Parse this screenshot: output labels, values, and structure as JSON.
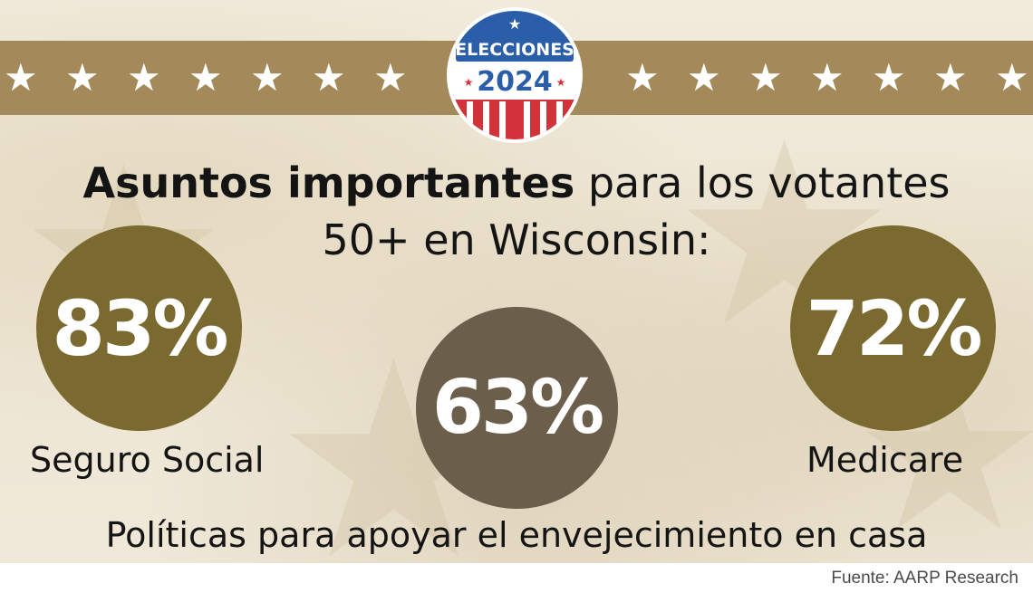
{
  "badge": {
    "line1": "ELECCIONES",
    "line2": "2024"
  },
  "headline": {
    "bold": "Asuntos importantes",
    "rest": " para los votantes",
    "line2": "50+ en Wisconsin:"
  },
  "stats": [
    {
      "value": "83%",
      "label": "Seguro Social"
    },
    {
      "value": "63%",
      "label": "Políticas para apoyar el envejecimiento en casa"
    },
    {
      "value": "72%",
      "label": "Medicare"
    }
  ],
  "source": "Fuente: AARP Research",
  "colors": {
    "band": "#a48a5a",
    "circle_gold": "#7b6a2f",
    "circle_gray": "#6b5f4b",
    "badge_blue": "#2b5ea8",
    "badge_red": "#d2333a"
  },
  "icons": {
    "band_star": "star-icon",
    "badge": "elecciones-2024-badge"
  }
}
